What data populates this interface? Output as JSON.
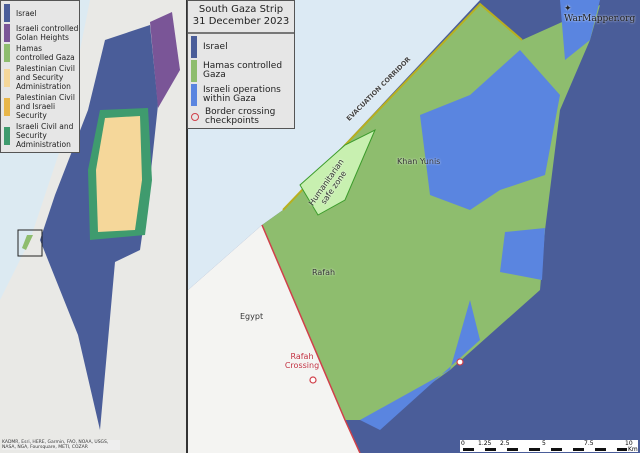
{
  "overview_legend": {
    "items": [
      {
        "label": "Israel",
        "color": "#4a5d99"
      },
      {
        "label": "Israeli controlled Golan Heights",
        "color": "#7a5597"
      },
      {
        "label": "Hamas controlled Gaza",
        "color": "#8ebd6e"
      },
      {
        "label": "Palestinian Civil and Security Administration",
        "color": "#f5d79a"
      },
      {
        "label": "Palestinian Civil and Israeli Security",
        "color": "#e8b64a"
      },
      {
        "label": "Israeli Civil and Security Administration",
        "color": "#3f9b6e"
      }
    ]
  },
  "main_legend": {
    "title_line1": "South Gaza Strip",
    "title_line2": "31 December 2023",
    "items": [
      {
        "label": "Israel",
        "color": "#4a5d99"
      },
      {
        "label": "Hamas controlled Gaza",
        "color": "#8ebd6e"
      },
      {
        "label": "Israeli operations within Gaza",
        "color": "#5a85e0"
      },
      {
        "label": "Border crossing checkpoints",
        "icon": "checkpoint-icon",
        "color": "#d0404a"
      }
    ]
  },
  "map_labels": {
    "khan_yunis": "Khan Yunis",
    "rafah": "Rafah",
    "egypt": "Egypt",
    "rafah_crossing": "Rafah Crossing",
    "safe_zone": "Humanitarian safe zone",
    "corridor": "EVACUATION CORRIDOR",
    "watermark": "WarMapper.org"
  },
  "scale_bar": {
    "ticks": [
      "0",
      "1.25",
      "2.5",
      "5",
      "7.5",
      "10"
    ],
    "unit": "Km"
  },
  "credit": "KADMR, Esri, HERE, Garmin, FAO, NOAA, USGS, NASA, NGA, Foursquare, METI, COZAR"
}
